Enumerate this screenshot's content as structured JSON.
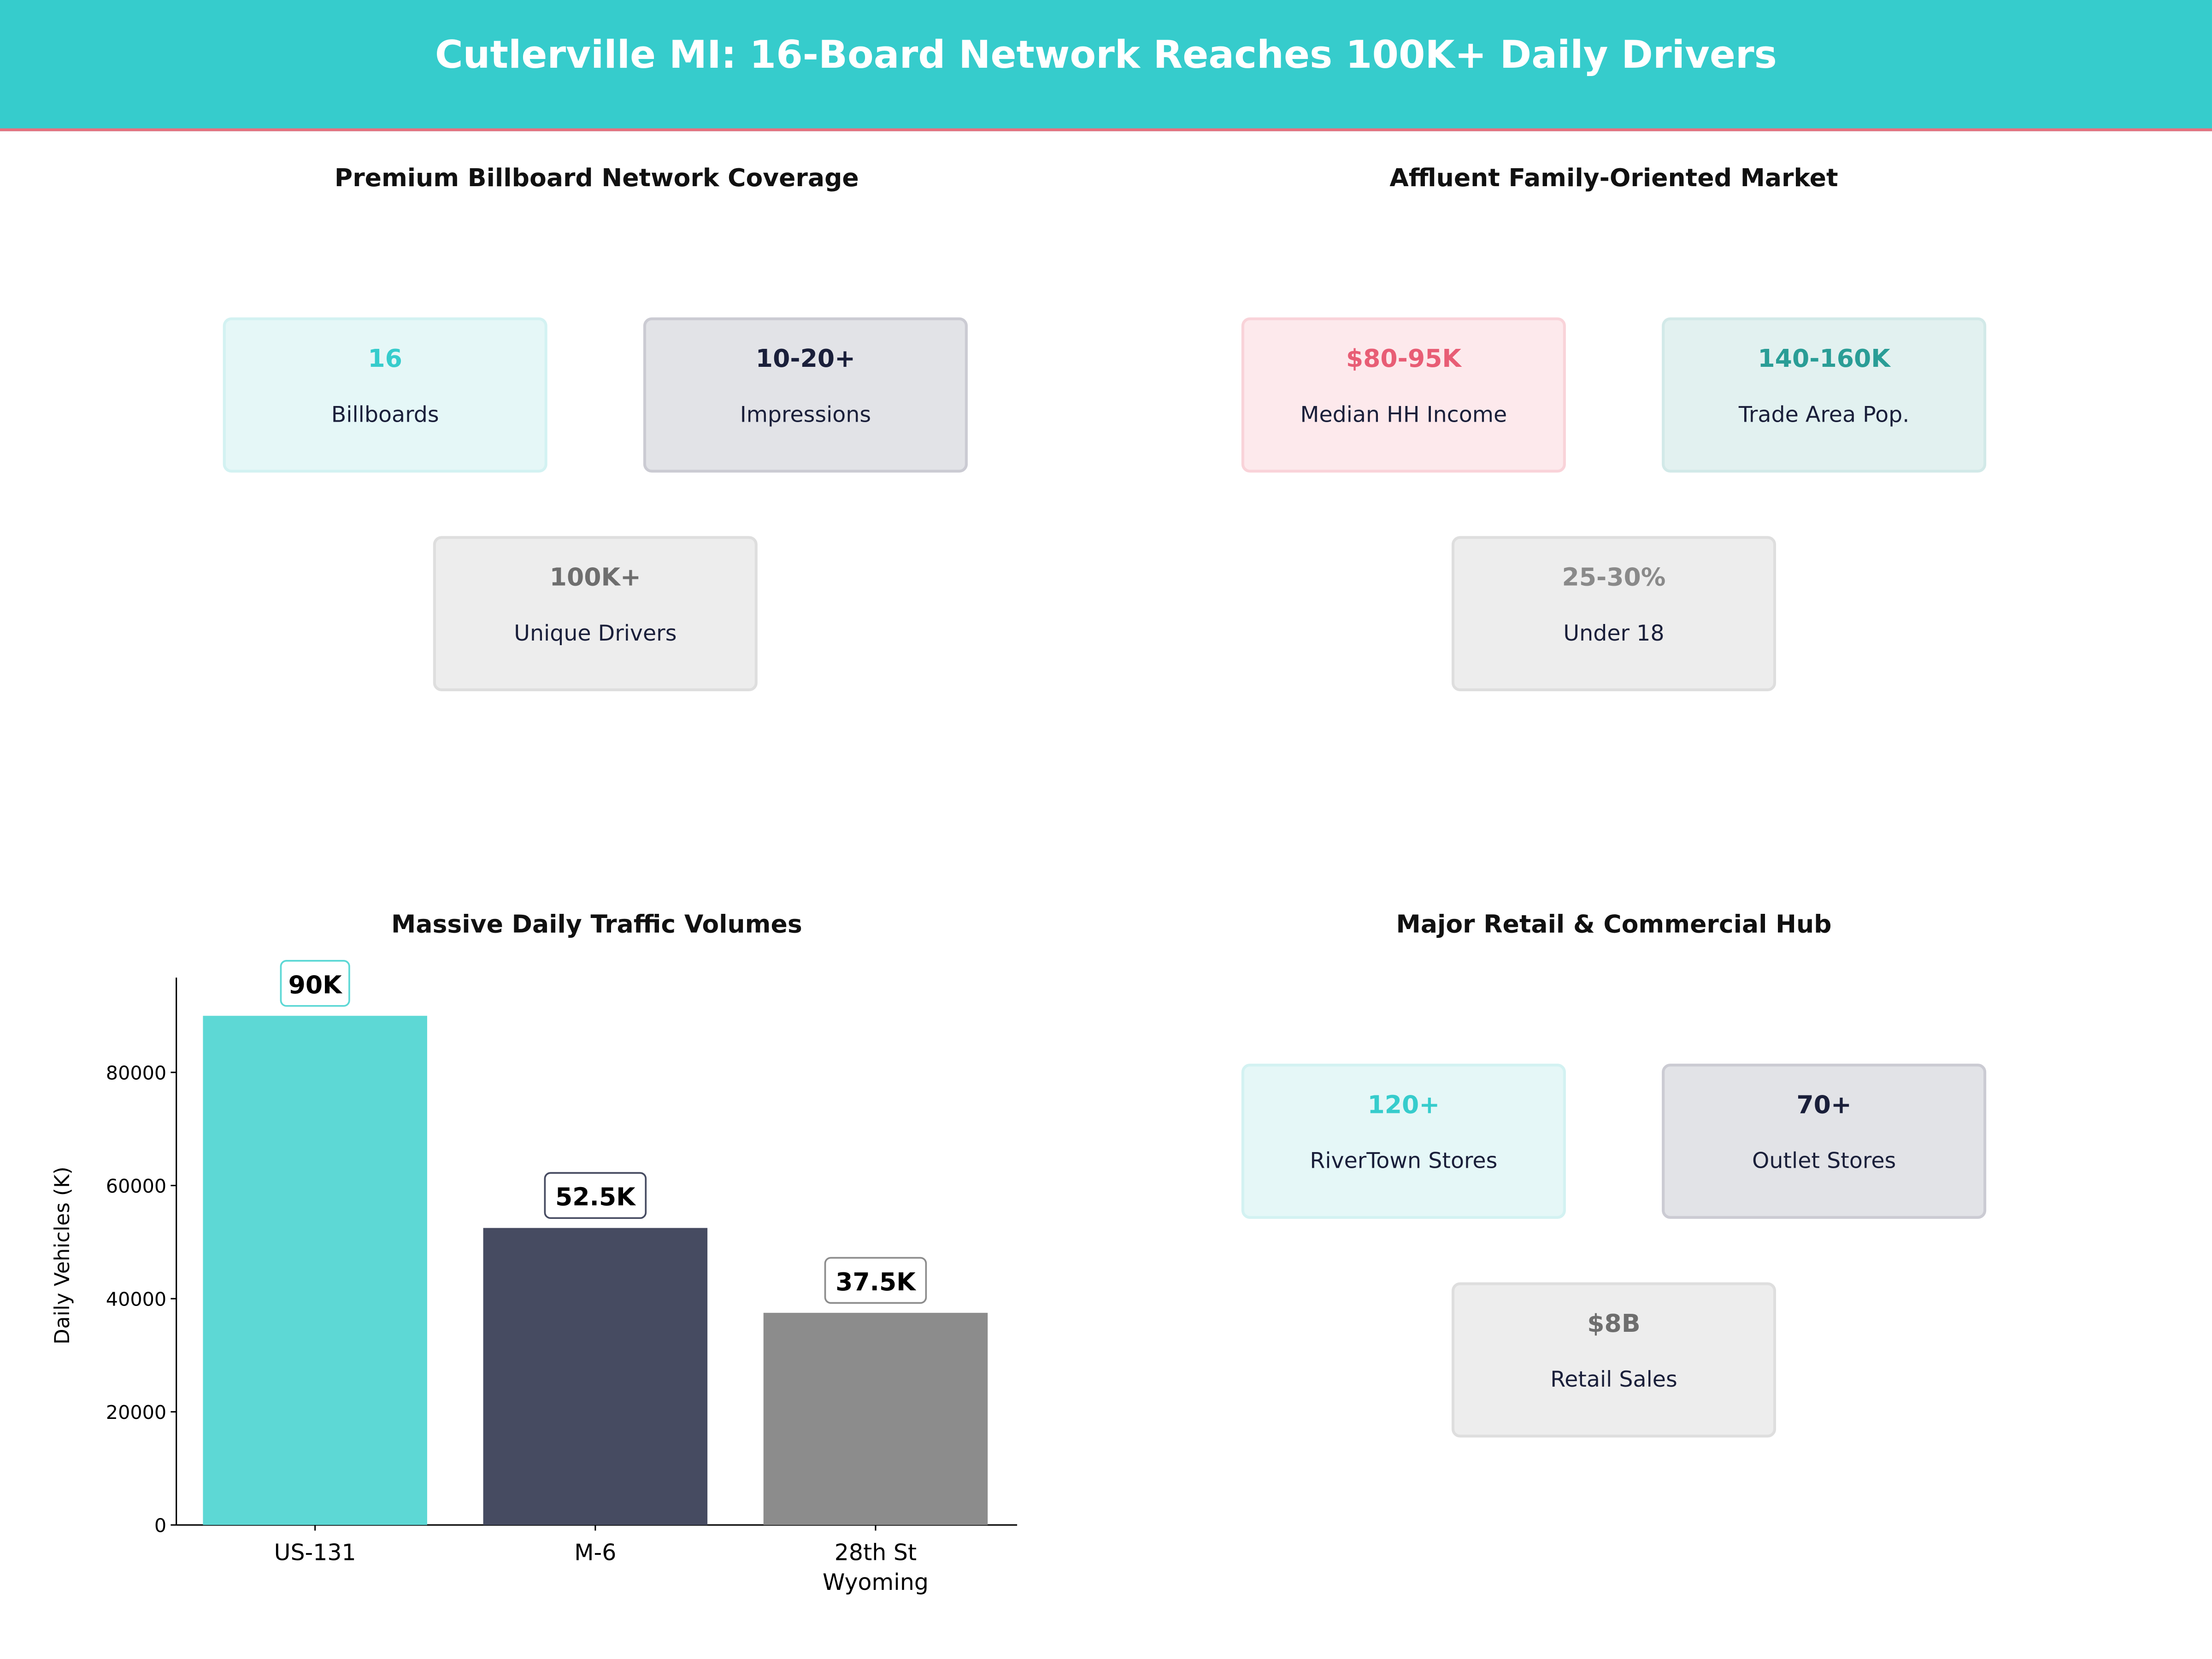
{
  "title": "Cutlerville MI: 16-Board Network Reaches 100K+ Daily Drivers",
  "colors": {
    "header": "#36CCCC",
    "accent_line": "#E8707E",
    "teal": "#5DD8D5",
    "navy": "#464B61",
    "gray": "#8C8C8C"
  },
  "panels": {
    "network": {
      "title": "Premium Billboard Network Coverage",
      "cards": [
        {
          "value": "16",
          "label": "Billboards"
        },
        {
          "value": "10-20+",
          "label": "Impressions"
        },
        {
          "value": "100K+",
          "label": "Unique Drivers"
        }
      ]
    },
    "market": {
      "title": "Affluent Family-Oriented Market",
      "cards": [
        {
          "value": "$80-95K",
          "label": "Median HH Income"
        },
        {
          "value": "140-160K",
          "label": "Trade Area Pop."
        },
        {
          "value": "25-30%",
          "label": "Under 18"
        }
      ]
    },
    "retail": {
      "title": "Major Retail & Commercial Hub",
      "cards": [
        {
          "value": "120+",
          "label": "RiverTown Stores"
        },
        {
          "value": "70+",
          "label": "Outlet Stores"
        },
        {
          "value": "$8B",
          "label": "Retail Sales"
        }
      ]
    }
  },
  "chart_data": {
    "type": "bar",
    "title": "Massive Daily Traffic Volumes",
    "categories": [
      "US-131",
      "M-6",
      "28th St\nWyoming"
    ],
    "category_lines": [
      [
        "US-131"
      ],
      [
        "M-6"
      ],
      [
        "28th St",
        "Wyoming"
      ]
    ],
    "values": [
      90000,
      52500,
      37500
    ],
    "data_labels": [
      "90K",
      "52.5K",
      "37.5K"
    ],
    "bar_colors": [
      "#5DD8D5",
      "#464B61",
      "#8C8C8C"
    ],
    "xlabel": "",
    "ylabel": "Daily Vehicles (K)",
    "ylim": [
      0,
      96750
    ],
    "yticks": [
      0,
      20000,
      40000,
      60000,
      80000
    ],
    "grid": false
  }
}
